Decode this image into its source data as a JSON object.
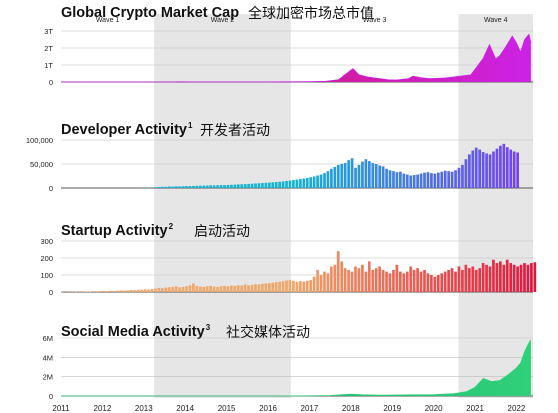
{
  "chart_data": [
    {
      "type": "area",
      "title": "Global Crypto Market Cap",
      "title_superscript": "",
      "title_cn": "全球加密市场总市值",
      "yticks": [
        "0",
        "1T",
        "2T",
        "3T"
      ],
      "ylim": [
        0,
        3
      ],
      "color_start": "#d9143b",
      "color_end": "#cc22e6",
      "wave_labels": [
        "Wave 1",
        "Wave 2",
        "Wave 3",
        "Wave 4"
      ],
      "x": [
        2011.0,
        2011.5,
        2012.0,
        2012.5,
        2013.0,
        2013.5,
        2013.9,
        2014.2,
        2014.6,
        2015.0,
        2015.5,
        2016.0,
        2016.5,
        2017.0,
        2017.4,
        2017.7,
        2017.95,
        2018.05,
        2018.2,
        2018.4,
        2018.6,
        2018.9,
        2019.1,
        2019.4,
        2019.5,
        2019.7,
        2019.9,
        2020.1,
        2020.3,
        2020.5,
        2020.7,
        2020.9,
        2021.0,
        2021.2,
        2021.35,
        2021.5,
        2021.6,
        2021.75,
        2021.9,
        2022.0,
        2022.1,
        2022.2,
        2022.3,
        2022.35
      ],
      "values": [
        0.0,
        0.0,
        0.0,
        0.0,
        0.002,
        0.001,
        0.012,
        0.008,
        0.006,
        0.004,
        0.004,
        0.008,
        0.011,
        0.018,
        0.04,
        0.13,
        0.6,
        0.78,
        0.42,
        0.3,
        0.23,
        0.13,
        0.12,
        0.2,
        0.34,
        0.25,
        0.2,
        0.22,
        0.24,
        0.3,
        0.36,
        0.42,
        0.75,
        1.4,
        2.2,
        1.35,
        1.55,
        2.1,
        2.7,
        2.3,
        1.75,
        2.5,
        2.8,
        2.3
      ]
    },
    {
      "type": "bar",
      "title": "Developer Activity",
      "title_superscript": "1",
      "title_cn": "开发者活动",
      "yticks": [
        "0",
        "50,000",
        "100,000"
      ],
      "ylim": [
        0,
        100000
      ],
      "color_start": "#12b5d6",
      "color_end": "#7a3df0",
      "x_start": 2013.25,
      "x_step": 0.0833,
      "values": [
        1500,
        2000,
        2500,
        2600,
        3200,
        3000,
        3500,
        3400,
        3800,
        4000,
        4100,
        4200,
        4600,
        4800,
        5000,
        5200,
        5600,
        5500,
        5800,
        6200,
        6000,
        6300,
        6700,
        7000,
        7400,
        7800,
        8200,
        8600,
        8900,
        9400,
        9900,
        10300,
        10800,
        11300,
        11800,
        12300,
        13000,
        13800,
        14600,
        15500,
        16500,
        17500,
        18600,
        19800,
        21000,
        22500,
        24000,
        26000,
        28000,
        31000,
        35000,
        40000,
        44000,
        48000,
        50000,
        52000,
        58000,
        62000,
        42000,
        48000,
        55000,
        60000,
        56000,
        52000,
        50000,
        47000,
        45000,
        40000,
        37000,
        35000,
        33000,
        34000,
        30000,
        28000,
        26000,
        27000,
        28000,
        30000,
        32000,
        33000,
        31000,
        30000,
        32000,
        34000,
        36000,
        35000,
        34000,
        37000,
        42000,
        48000,
        60000,
        70000,
        78000,
        84000,
        80000,
        75000,
        72000,
        70000,
        76000,
        82000,
        88000,
        92000,
        85000,
        80000,
        76000,
        74000
      ]
    },
    {
      "type": "bar",
      "title": "Startup Activity",
      "title_superscript": "2",
      "title_cn": "启动活动",
      "yticks": [
        "0",
        "100",
        "200",
        "300"
      ],
      "ylim": [
        0,
        300
      ],
      "color_start": "#f0a86a",
      "color_end": "#e01840",
      "x_start": 2011.0,
      "x_step": 0.0833,
      "values": [
        2,
        1,
        2,
        2,
        3,
        2,
        4,
        3,
        3,
        5,
        4,
        5,
        6,
        5,
        7,
        6,
        8,
        9,
        8,
        10,
        12,
        11,
        13,
        14,
        16,
        15,
        18,
        20,
        24,
        22,
        26,
        28,
        30,
        33,
        28,
        30,
        34,
        40,
        50,
        36,
        32,
        30,
        34,
        36,
        32,
        30,
        34,
        36,
        34,
        38,
        36,
        40,
        38,
        44,
        40,
        42,
        46,
        45,
        48,
        50,
        52,
        55,
        58,
        60,
        64,
        68,
        70,
        66,
        60,
        64,
        62,
        66,
        70,
        90,
        130,
        100,
        120,
        110,
        150,
        160,
        240,
        180,
        140,
        130,
        120,
        150,
        140,
        160,
        120,
        180,
        130,
        140,
        150,
        130,
        120,
        110,
        130,
        160,
        120,
        110,
        120,
        150,
        130,
        140,
        120,
        130,
        110,
        100,
        90,
        100,
        110,
        120,
        130,
        140,
        120,
        150,
        130,
        160,
        140,
        150,
        130,
        140,
        170,
        160,
        150,
        190,
        170,
        180,
        160,
        190,
        170,
        160,
        150,
        160,
        170,
        160,
        170,
        175
      ]
    },
    {
      "type": "area",
      "title": "Social Media Activity",
      "title_superscript": "3",
      "title_cn": "社交媒体活动",
      "yticks": [
        "0",
        "2M",
        "4M",
        "6M"
      ],
      "ylim": [
        0,
        6
      ],
      "color_start": "#0fa56a",
      "color_end": "#2fd07a",
      "x": [
        2011.0,
        2012.0,
        2013.0,
        2014.0,
        2015.0,
        2016.0,
        2017.0,
        2017.5,
        2018.0,
        2018.3,
        2018.7,
        2019.0,
        2019.5,
        2020.0,
        2020.5,
        2020.8,
        2021.0,
        2021.2,
        2021.4,
        2021.6,
        2021.8,
        2022.0,
        2022.1,
        2022.2,
        2022.3,
        2022.35
      ],
      "values": [
        0,
        0,
        0,
        0,
        0,
        0,
        0.02,
        0.05,
        0.2,
        0.12,
        0.08,
        0.1,
        0.12,
        0.15,
        0.25,
        0.45,
        0.9,
        1.8,
        1.5,
        1.6,
        2.2,
        2.9,
        3.4,
        4.6,
        5.5,
        5.8
      ]
    }
  ],
  "x_axis": {
    "ticks": [
      "2011",
      "2012",
      "2013",
      "2014",
      "2015",
      "2016",
      "2017",
      "2018",
      "2019",
      "2020",
      "2021",
      "2022"
    ],
    "range": [
      2011,
      2022.4
    ]
  },
  "waves": [
    {
      "label": "Wave 1",
      "shaded": false,
      "start": 2011.0,
      "end": 2013.25
    },
    {
      "label": "Wave 2",
      "shaded": true,
      "start": 2013.25,
      "end": 2016.55
    },
    {
      "label": "Wave 3",
      "shaded": false,
      "start": 2016.55,
      "end": 2020.6
    },
    {
      "label": "Wave 4",
      "shaded": true,
      "start": 2020.6,
      "end": 2022.4
    }
  ],
  "colors": {
    "shade": "#e6e6e6",
    "grid": "#bdbdbd",
    "axis": "#555555"
  }
}
